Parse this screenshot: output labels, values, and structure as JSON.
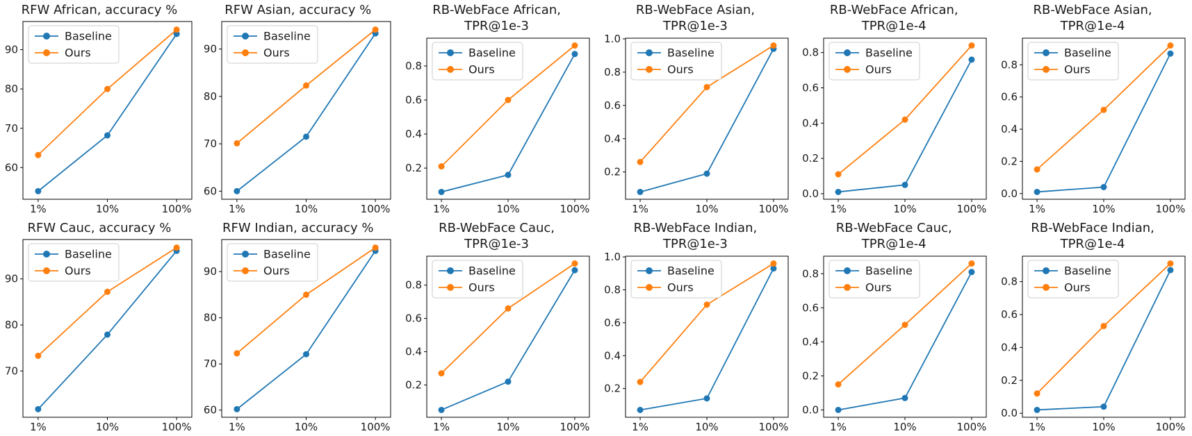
{
  "figure": {
    "rows": 2,
    "cols": 6,
    "background": "#ffffff",
    "x_scale": "log",
    "legend_position": "upper left",
    "series_names": [
      "Baseline",
      "Ours"
    ],
    "series_colors": {
      "baseline": "#1f77b4",
      "ours": "#ff7f0e"
    },
    "spine_color": "#000000"
  },
  "chart_data": [
    {
      "type": "line",
      "title": "RFW African, accuracy %",
      "categories": [
        "1%",
        "10%",
        "100%"
      ],
      "yticks": [
        "60",
        "70",
        "80",
        "90"
      ],
      "series": [
        {
          "name": "Baseline",
          "color": "#1f77b4",
          "values": [
            54.0,
            68.2,
            94.0
          ]
        },
        {
          "name": "Ours",
          "color": "#ff7f0e",
          "values": [
            63.2,
            80.0,
            95.1
          ]
        }
      ]
    },
    {
      "type": "line",
      "title": "RFW Asian, accuracy %",
      "categories": [
        "1%",
        "10%",
        "100%"
      ],
      "yticks": [
        "60",
        "70",
        "80",
        "90"
      ],
      "series": [
        {
          "name": "Baseline",
          "color": "#1f77b4",
          "values": [
            60.0,
            71.5,
            93.3
          ]
        },
        {
          "name": "Ours",
          "color": "#ff7f0e",
          "values": [
            70.1,
            82.3,
            94.1
          ]
        }
      ]
    },
    {
      "type": "line",
      "title": "RB-WebFace African,\nTPR@1e-3",
      "categories": [
        "1%",
        "10%",
        "100%"
      ],
      "yticks": [
        "0.2",
        "0.4",
        "0.6",
        "0.8"
      ],
      "series": [
        {
          "name": "Baseline",
          "color": "#1f77b4",
          "values": [
            0.06,
            0.16,
            0.87
          ]
        },
        {
          "name": "Ours",
          "color": "#ff7f0e",
          "values": [
            0.21,
            0.6,
            0.92
          ]
        }
      ]
    },
    {
      "type": "line",
      "title": "RB-WebFace Asian,\nTPR@1e-3",
      "categories": [
        "1%",
        "10%",
        "100%"
      ],
      "yticks": [
        "0.2",
        "0.4",
        "0.6",
        "0.8",
        "1.0"
      ],
      "series": [
        {
          "name": "Baseline",
          "color": "#1f77b4",
          "values": [
            0.08,
            0.19,
            0.94
          ]
        },
        {
          "name": "Ours",
          "color": "#ff7f0e",
          "values": [
            0.26,
            0.71,
            0.96
          ]
        }
      ]
    },
    {
      "type": "line",
      "title": "RB-WebFace African,\nTPR@1e-4",
      "categories": [
        "1%",
        "10%",
        "100%"
      ],
      "yticks": [
        "0.0",
        "0.2",
        "0.4",
        "0.6",
        "0.8"
      ],
      "series": [
        {
          "name": "Baseline",
          "color": "#1f77b4",
          "values": [
            0.01,
            0.05,
            0.76
          ]
        },
        {
          "name": "Ours",
          "color": "#ff7f0e",
          "values": [
            0.11,
            0.42,
            0.84
          ]
        }
      ]
    },
    {
      "type": "line",
      "title": "RB-WebFace Asian,\nTPR@1e-4",
      "categories": [
        "1%",
        "10%",
        "100%"
      ],
      "yticks": [
        "0.0",
        "0.2",
        "0.4",
        "0.6",
        "0.8"
      ],
      "series": [
        {
          "name": "Baseline",
          "color": "#1f77b4",
          "values": [
            0.01,
            0.04,
            0.87
          ]
        },
        {
          "name": "Ours",
          "color": "#ff7f0e",
          "values": [
            0.15,
            0.52,
            0.92
          ]
        }
      ]
    },
    {
      "type": "line",
      "title": "RFW Cauc, accuracy %",
      "categories": [
        "1%",
        "10%",
        "100%"
      ],
      "yticks": [
        "70",
        "80",
        "90"
      ],
      "series": [
        {
          "name": "Baseline",
          "color": "#1f77b4",
          "values": [
            61.7,
            77.9,
            96.1
          ]
        },
        {
          "name": "Ours",
          "color": "#ff7f0e",
          "values": [
            73.3,
            87.2,
            96.8
          ]
        }
      ]
    },
    {
      "type": "line",
      "title": "RFW Indian, accuracy %",
      "categories": [
        "1%",
        "10%",
        "100%"
      ],
      "yticks": [
        "60",
        "70",
        "80",
        "90"
      ],
      "series": [
        {
          "name": "Baseline",
          "color": "#1f77b4",
          "values": [
            60.2,
            72.1,
            94.5
          ]
        },
        {
          "name": "Ours",
          "color": "#ff7f0e",
          "values": [
            72.3,
            85.0,
            95.2
          ]
        }
      ]
    },
    {
      "type": "line",
      "title": "RB-WebFace Cauc,\nTPR@1e-3",
      "categories": [
        "1%",
        "10%",
        "100%"
      ],
      "yticks": [
        "0.2",
        "0.4",
        "0.6",
        "0.8"
      ],
      "series": [
        {
          "name": "Baseline",
          "color": "#1f77b4",
          "values": [
            0.05,
            0.22,
            0.89
          ]
        },
        {
          "name": "Ours",
          "color": "#ff7f0e",
          "values": [
            0.27,
            0.66,
            0.93
          ]
        }
      ]
    },
    {
      "type": "line",
      "title": "RB-WebFace Indian,\nTPR@1e-3",
      "categories": [
        "1%",
        "10%",
        "100%"
      ],
      "yticks": [
        "0.2",
        "0.4",
        "0.6",
        "0.8",
        "1.0"
      ],
      "series": [
        {
          "name": "Baseline",
          "color": "#1f77b4",
          "values": [
            0.07,
            0.14,
            0.93
          ]
        },
        {
          "name": "Ours",
          "color": "#ff7f0e",
          "values": [
            0.24,
            0.71,
            0.96
          ]
        }
      ]
    },
    {
      "type": "line",
      "title": "RB-WebFace Cauc,\nTPR@1e-4",
      "categories": [
        "1%",
        "10%",
        "100%"
      ],
      "yticks": [
        "0.0",
        "0.2",
        "0.4",
        "0.6",
        "0.8"
      ],
      "series": [
        {
          "name": "Baseline",
          "color": "#1f77b4",
          "values": [
            0.0,
            0.07,
            0.81
          ]
        },
        {
          "name": "Ours",
          "color": "#ff7f0e",
          "values": [
            0.15,
            0.5,
            0.86
          ]
        }
      ]
    },
    {
      "type": "line",
      "title": "RB-WebFace Indian,\nTPR@1e-4",
      "categories": [
        "1%",
        "10%",
        "100%"
      ],
      "yticks": [
        "0.0",
        "0.2",
        "0.4",
        "0.6",
        "0.8"
      ],
      "series": [
        {
          "name": "Baseline",
          "color": "#1f77b4",
          "values": [
            0.02,
            0.04,
            0.87
          ]
        },
        {
          "name": "Ours",
          "color": "#ff7f0e",
          "values": [
            0.12,
            0.53,
            0.91
          ]
        }
      ]
    }
  ]
}
